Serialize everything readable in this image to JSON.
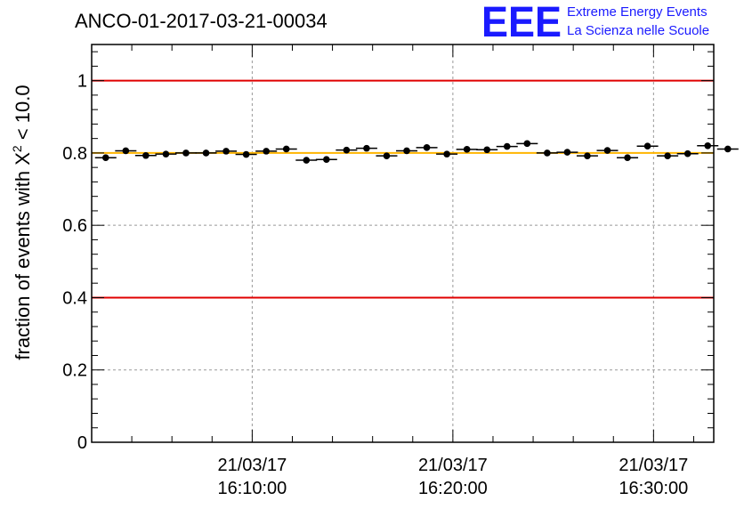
{
  "chart_data": {
    "type": "scatter",
    "title": "ANCO-01-2017-03-21-00034",
    "ylabel_prefix": "fraction of events with ",
    "ylabel_symbol": "X",
    "ylabel_superscript": "2",
    "ylabel_suffix": " < 10.0",
    "xlabel": "",
    "ylim": [
      0,
      1.1
    ],
    "yticks": [
      {
        "value": 0,
        "label": "0"
      },
      {
        "value": 0.2,
        "label": "0.2"
      },
      {
        "value": 0.4,
        "label": "0.4"
      },
      {
        "value": 0.6,
        "label": "0.6"
      },
      {
        "value": 0.8,
        "label": "0.8"
      },
      {
        "value": 1,
        "label": "1"
      }
    ],
    "xlim_minutes": [
      1.0,
      32.0
    ],
    "xticks": [
      {
        "minute": 9.0,
        "date": "21/03/17",
        "time": "16:10:00"
      },
      {
        "minute": 19.0,
        "date": "21/03/17",
        "time": "16:20:00"
      },
      {
        "minute": 29.0,
        "date": "21/03/17",
        "time": "16:30:00"
      }
    ],
    "grid": true,
    "reference_lines": [
      {
        "y": 1.0,
        "color": "#e00000"
      },
      {
        "y": 0.4,
        "color": "#e00000"
      },
      {
        "y": 0.8,
        "color": "#ffb400"
      }
    ],
    "points": [
      {
        "x": 1.7,
        "y": 0.787
      },
      {
        "x": 2.7,
        "y": 0.806
      },
      {
        "x": 3.7,
        "y": 0.793
      },
      {
        "x": 4.7,
        "y": 0.797
      },
      {
        "x": 5.7,
        "y": 0.8
      },
      {
        "x": 6.7,
        "y": 0.8
      },
      {
        "x": 7.7,
        "y": 0.805
      },
      {
        "x": 8.7,
        "y": 0.796
      },
      {
        "x": 9.7,
        "y": 0.805
      },
      {
        "x": 10.7,
        "y": 0.811
      },
      {
        "x": 11.7,
        "y": 0.78
      },
      {
        "x": 12.7,
        "y": 0.782
      },
      {
        "x": 13.7,
        "y": 0.808
      },
      {
        "x": 14.7,
        "y": 0.813
      },
      {
        "x": 15.7,
        "y": 0.792
      },
      {
        "x": 16.7,
        "y": 0.806
      },
      {
        "x": 17.7,
        "y": 0.815
      },
      {
        "x": 18.7,
        "y": 0.797
      },
      {
        "x": 19.7,
        "y": 0.81
      },
      {
        "x": 20.7,
        "y": 0.809
      },
      {
        "x": 21.7,
        "y": 0.818
      },
      {
        "x": 22.7,
        "y": 0.826
      },
      {
        "x": 23.7,
        "y": 0.8
      },
      {
        "x": 24.7,
        "y": 0.802
      },
      {
        "x": 25.7,
        "y": 0.792
      },
      {
        "x": 26.7,
        "y": 0.807
      },
      {
        "x": 27.7,
        "y": 0.787
      },
      {
        "x": 28.7,
        "y": 0.819
      },
      {
        "x": 29.7,
        "y": 0.792
      },
      {
        "x": 30.7,
        "y": 0.798
      },
      {
        "x": 31.7,
        "y": 0.82
      },
      {
        "x": 32.7,
        "y": 0.811
      }
    ]
  },
  "logo": {
    "text": "EEE",
    "line1": "Extreme Energy Events",
    "line2": "La Scienza nelle Scuole",
    "color": "#1a1aff"
  },
  "colors": {
    "marker": "#000000",
    "grid": "#999999",
    "frame": "#000000"
  }
}
